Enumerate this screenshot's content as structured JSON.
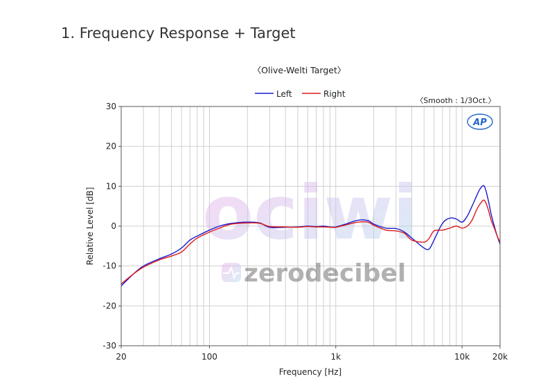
{
  "heading": "1. Frequency Response + Target",
  "chart_data": {
    "type": "line",
    "title": "〈Olive-Welti Target〉",
    "smooth_note": "〈Smooth : 1/3Oct.〉",
    "xlabel": "Frequency [Hz]",
    "ylabel": "Relative Level [dB]",
    "x_scale": "log",
    "xlim": [
      20,
      20000
    ],
    "ylim": [
      -30,
      30
    ],
    "grid": true,
    "legend_position": "top-center",
    "xticks": [
      {
        "value": 20,
        "label": "20"
      },
      {
        "value": 100,
        "label": "100"
      },
      {
        "value": 1000,
        "label": "1k"
      },
      {
        "value": 10000,
        "label": "10k"
      },
      {
        "value": 20000,
        "label": "20k"
      }
    ],
    "yticks": [
      {
        "value": 30,
        "label": "30"
      },
      {
        "value": 20,
        "label": "20"
      },
      {
        "value": 10,
        "label": "10"
      },
      {
        "value": 0,
        "label": "0"
      },
      {
        "value": -10,
        "label": "-10"
      },
      {
        "value": -20,
        "label": "-20"
      },
      {
        "value": -30,
        "label": "-30"
      }
    ],
    "series": [
      {
        "name": "Left",
        "color": "#1a1acc",
        "x": [
          20,
          25,
          30,
          40,
          50,
          60,
          70,
          80,
          100,
          120,
          150,
          200,
          250,
          300,
          400,
          500,
          600,
          700,
          800,
          900,
          1000,
          1200,
          1500,
          1800,
          2000,
          2500,
          3000,
          3500,
          4000,
          5000,
          5500,
          6000,
          7000,
          8000,
          9000,
          10000,
          11000,
          12000,
          13000,
          14000,
          15000,
          16000,
          17000,
          18000,
          19000,
          20000
        ],
        "y": [
          -15.0,
          -12.0,
          -10.0,
          -8.2,
          -7.0,
          -5.5,
          -3.5,
          -2.5,
          -1.0,
          0.0,
          0.7,
          1.0,
          0.8,
          -0.3,
          -0.3,
          -0.2,
          0.0,
          -0.1,
          0.0,
          -0.2,
          -0.2,
          0.5,
          1.5,
          1.4,
          0.5,
          -0.5,
          -0.6,
          -1.5,
          -3.0,
          -5.5,
          -5.7,
          -3.5,
          0.7,
          2.0,
          1.8,
          1.0,
          2.5,
          5.0,
          7.5,
          9.5,
          10.0,
          7.0,
          3.0,
          0.0,
          -2.5,
          -4.5
        ]
      },
      {
        "name": "Right",
        "color": "#dd1a1a",
        "x": [
          20,
          25,
          30,
          40,
          50,
          60,
          70,
          80,
          100,
          120,
          150,
          200,
          250,
          300,
          400,
          500,
          600,
          700,
          800,
          900,
          1000,
          1200,
          1500,
          1800,
          2000,
          2500,
          3000,
          3500,
          4000,
          5000,
          5500,
          6000,
          7000,
          8000,
          9000,
          10000,
          11000,
          12000,
          13000,
          14000,
          15000,
          16000,
          17000,
          18000,
          19000,
          20000
        ],
        "y": [
          -14.5,
          -12.0,
          -10.3,
          -8.5,
          -7.5,
          -6.5,
          -4.5,
          -3.0,
          -1.5,
          -0.5,
          0.5,
          0.8,
          0.7,
          -0.1,
          -0.2,
          -0.3,
          -0.1,
          -0.2,
          -0.2,
          -0.3,
          -0.3,
          0.3,
          1.0,
          1.0,
          0.2,
          -1.0,
          -1.2,
          -1.8,
          -3.5,
          -4.0,
          -3.0,
          -1.2,
          -1.0,
          -0.5,
          0.0,
          -0.5,
          0.0,
          1.5,
          4.0,
          5.7,
          6.5,
          4.5,
          1.5,
          -0.5,
          -2.5,
          -4.0
        ]
      }
    ]
  },
  "watermark": {
    "logo_text": "ociwi",
    "brand_text": "zerodecibel"
  },
  "badge_text": "AP",
  "colors": {
    "left": "#1a1acc",
    "right": "#dd1a1a",
    "grid": "#d0d0d0",
    "axis": "#555555",
    "badge": "#2266cc"
  }
}
